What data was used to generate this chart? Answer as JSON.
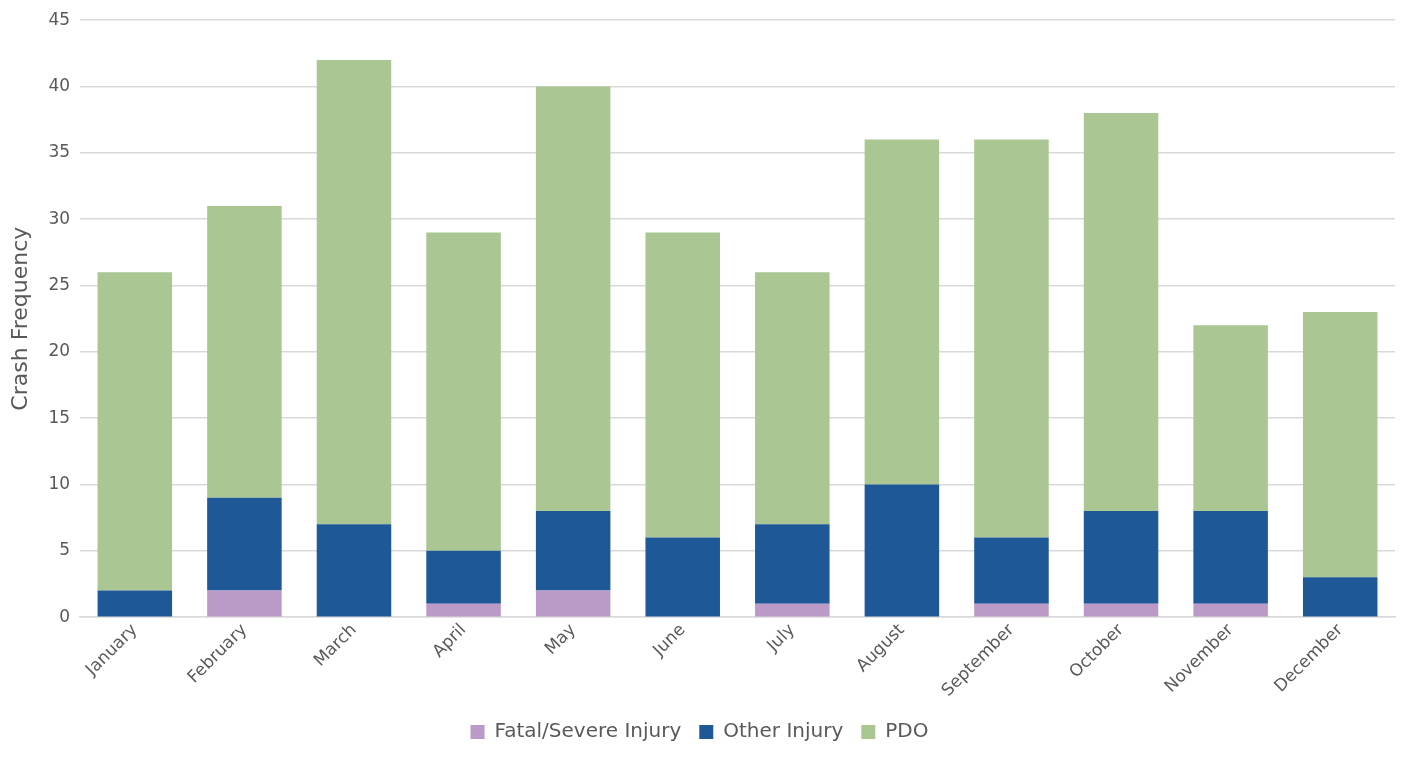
{
  "chart_data": {
    "type": "bar",
    "stacked": true,
    "ylabel": "Crash Frequency",
    "categories": [
      "January",
      "February",
      "March",
      "April",
      "May",
      "June",
      "July",
      "August",
      "September",
      "October",
      "November",
      "December"
    ],
    "series": [
      {
        "name": "Fatal/Severe Injury",
        "color": "#bc9ac8",
        "values": [
          0,
          2,
          0,
          1,
          2,
          0,
          1,
          0,
          1,
          1,
          1,
          0
        ]
      },
      {
        "name": "Other Injury",
        "color": "#1f5896",
        "values": [
          2,
          7,
          7,
          4,
          6,
          6,
          6,
          10,
          5,
          7,
          7,
          3
        ]
      },
      {
        "name": "PDO",
        "color": "#a9c693",
        "values": [
          24,
          22,
          35,
          24,
          32,
          23,
          19,
          26,
          30,
          30,
          14,
          20
        ]
      }
    ],
    "ylim": [
      0,
      45
    ],
    "yticks": [
      0,
      5,
      10,
      15,
      20,
      25,
      30,
      35,
      40,
      45
    ],
    "grid": "y",
    "legend": "bottom"
  }
}
